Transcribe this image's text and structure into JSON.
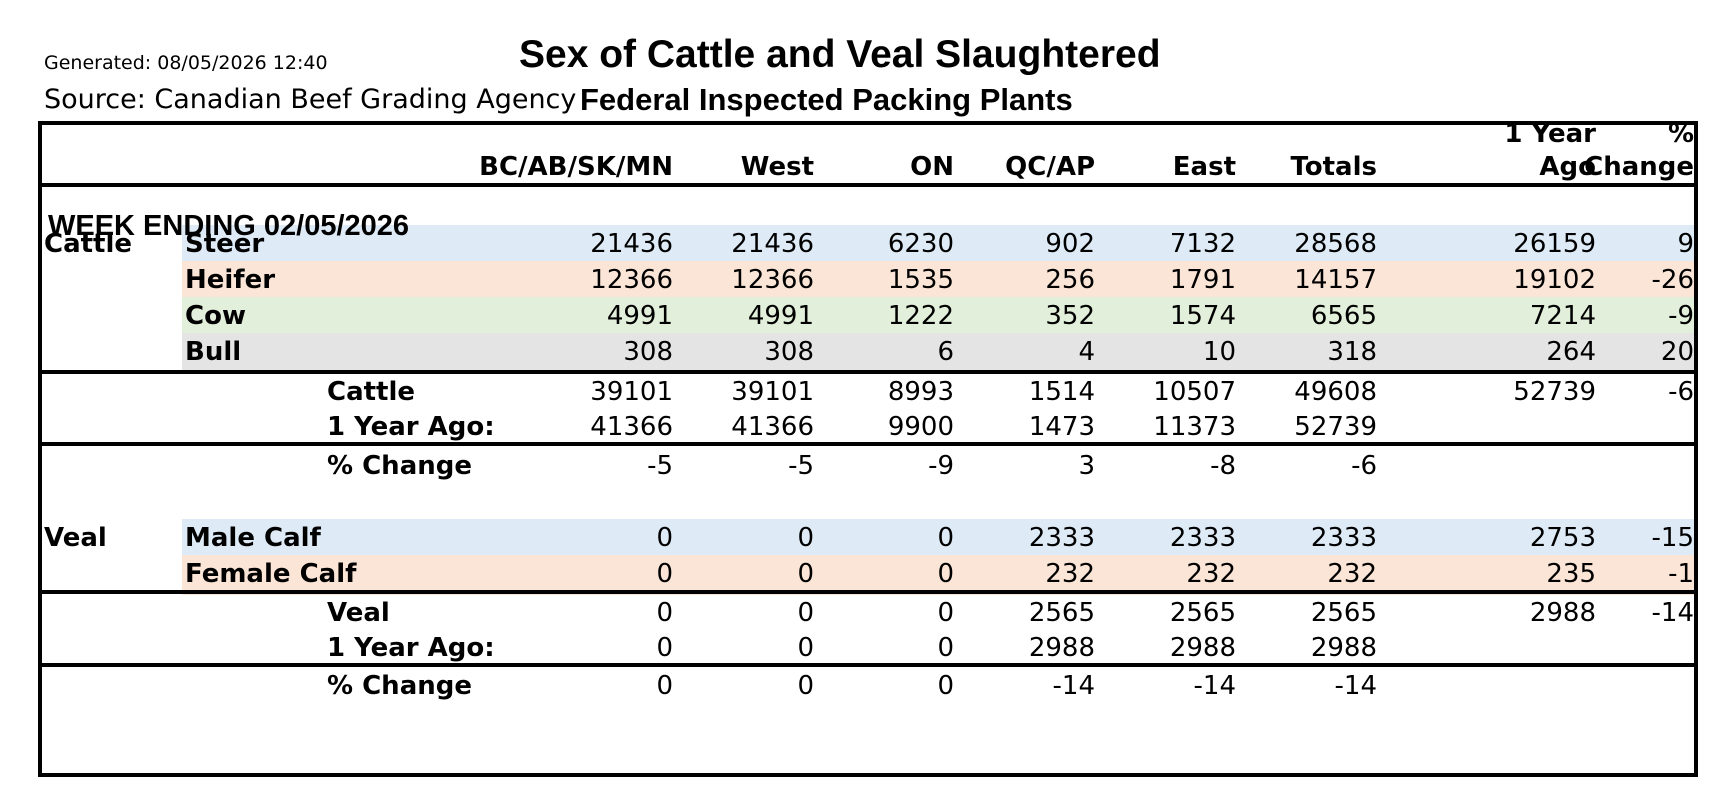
{
  "header": {
    "generated": "Generated: 08/05/2026 12:40",
    "source": "Source: Canadian Beef Grading Agency",
    "title": "Sex of Cattle and Veal Slaughtered",
    "subtitle": "Federal Inspected Packing Plants"
  },
  "columns": {
    "c1": "BC/AB/SK/MN",
    "c2": "West",
    "c3": "ON",
    "c4": "QC/AP",
    "c5": "East",
    "c6": "Totals",
    "c7_line1": "1 Year",
    "c7_line2": "Ago",
    "c8_line1": "%",
    "c8_line2": "Change"
  },
  "week_label": "WEEK ENDING 02/05/2026",
  "cattle": {
    "group_label": "Cattle",
    "rows": [
      {
        "label": "Steer",
        "values": [
          "21436",
          "21436",
          "6230",
          "902",
          "7132",
          "28568",
          "26159",
          "9"
        ]
      },
      {
        "label": "Heifer",
        "values": [
          "12366",
          "12366",
          "1535",
          "256",
          "1791",
          "14157",
          "19102",
          "-26"
        ]
      },
      {
        "label": "Cow",
        "values": [
          "4991",
          "4991",
          "1222",
          "352",
          "1574",
          "6565",
          "7214",
          "-9"
        ]
      },
      {
        "label": "Bull",
        "values": [
          "308",
          "308",
          "6",
          "4",
          "10",
          "318",
          "264",
          "20"
        ]
      }
    ],
    "total": {
      "label": "Cattle",
      "values": [
        "39101",
        "39101",
        "8993",
        "1514",
        "10507",
        "49608",
        "52739",
        "-6"
      ]
    },
    "year_ago": {
      "label": "1 Year Ago:",
      "values": [
        "41366",
        "41366",
        "9900",
        "1473",
        "11373",
        "52739",
        "",
        ""
      ]
    },
    "change": {
      "label": "% Change",
      "values": [
        "-5",
        "-5",
        "-9",
        "3",
        "-8",
        "-6",
        "",
        ""
      ]
    }
  },
  "veal": {
    "group_label": "Veal",
    "rows": [
      {
        "label": "Male Calf",
        "values": [
          "0",
          "0",
          "0",
          "2333",
          "2333",
          "2333",
          "2753",
          "-15"
        ]
      },
      {
        "label": "Female Calf",
        "values": [
          "0",
          "0",
          "0",
          "232",
          "232",
          "232",
          "235",
          "-1"
        ]
      }
    ],
    "total": {
      "label": "Veal",
      "values": [
        "0",
        "0",
        "0",
        "2565",
        "2565",
        "2565",
        "2988",
        "-14"
      ]
    },
    "year_ago": {
      "label": "1 Year Ago:",
      "values": [
        "0",
        "0",
        "0",
        "2988",
        "2988",
        "2988",
        "",
        ""
      ]
    },
    "change": {
      "label": "% Change",
      "values": [
        "0",
        "0",
        "0",
        "-14",
        "-14",
        "-14",
        "",
        ""
      ]
    }
  },
  "colors": {
    "steer_row": "#deebf7",
    "heifer_row": "#fbe5d6",
    "cow_row": "#e2efda",
    "bull_row": "#e4e4e4"
  }
}
